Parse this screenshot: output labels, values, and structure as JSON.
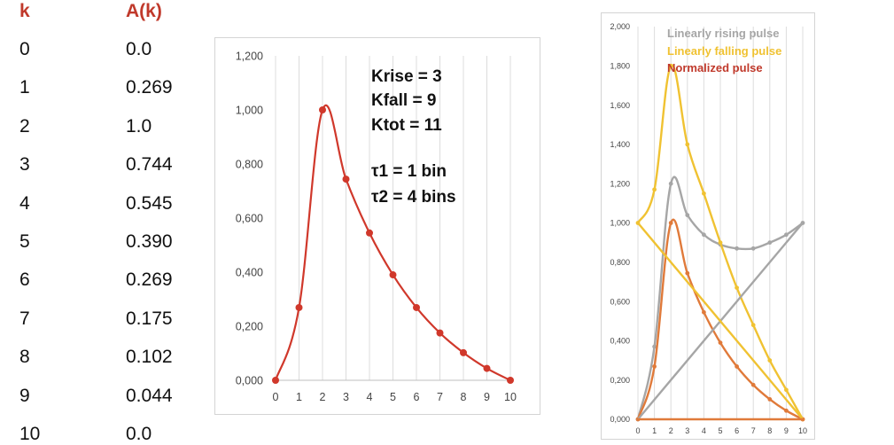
{
  "table": {
    "headers": [
      "k",
      "A(k)"
    ],
    "rows": [
      [
        "0",
        "0.0"
      ],
      [
        "1",
        "0.269"
      ],
      [
        "2",
        "1.0"
      ],
      [
        "3",
        "0.744"
      ],
      [
        "4",
        "0.545"
      ],
      [
        "5",
        "0.390"
      ],
      [
        "6",
        "0.269"
      ],
      [
        "7",
        "0.175"
      ],
      [
        "8",
        "0.102"
      ],
      [
        "9",
        "0.044"
      ],
      [
        "10",
        "0.0"
      ]
    ]
  },
  "colors": {
    "header": "#c0392b",
    "pulse": "#d0382b",
    "rising": "#a6a6a6",
    "falling": "#f0c232",
    "normalized": "#e07a3a",
    "legend_normalized": "#c0392b",
    "grid": "#dcdcdc"
  },
  "annotations": {
    "krise": "Krise = 3",
    "kfall": "Kfall = 9",
    "ktot": "Ktot = 11",
    "tau1": "τ1 = 1 bin",
    "tau2": "τ2 = 4 bins"
  },
  "chart_data": [
    {
      "type": "line",
      "title": "",
      "xlabel": "",
      "ylabel": "",
      "xlim": [
        0,
        10
      ],
      "ylim": [
        0,
        1.2
      ],
      "x_ticks": [
        "0",
        "1",
        "2",
        "3",
        "4",
        "5",
        "6",
        "7",
        "8",
        "9",
        "10"
      ],
      "y_ticks": [
        "0,000",
        "0,200",
        "0,400",
        "0,600",
        "0,800",
        "1,000",
        "1,200"
      ],
      "grid": "vertical",
      "smooth": true,
      "series": [
        {
          "color": "#d0382b",
          "x": [
            0,
            1,
            2,
            3,
            4,
            5,
            6,
            7,
            8,
            9,
            10
          ],
          "y": [
            0.0,
            0.269,
            1.0,
            0.744,
            0.545,
            0.39,
            0.269,
            0.175,
            0.102,
            0.044,
            0.0
          ]
        }
      ]
    },
    {
      "type": "line",
      "title": "",
      "xlim": [
        0,
        10
      ],
      "ylim": [
        0,
        2.0
      ],
      "x_ticks": [
        "0",
        "1",
        "2",
        "3",
        "4",
        "5",
        "6",
        "7",
        "8",
        "9",
        "10"
      ],
      "y_ticks": [
        "0,000",
        "0,200",
        "0,400",
        "0,600",
        "0,800",
        "1,000",
        "1,200",
        "1,400",
        "1,600",
        "1,800",
        "2,000"
      ],
      "grid": "vertical",
      "legend_position": "top",
      "series": [
        {
          "name": "Linearly rising pulse",
          "color": "#a6a6a6",
          "x": [
            0,
            1,
            2,
            3,
            4,
            5,
            6,
            7,
            8,
            9,
            10
          ],
          "y": [
            0.0,
            0.37,
            1.2,
            1.04,
            0.94,
            0.89,
            0.87,
            0.87,
            0.9,
            0.94,
            1.0
          ]
        },
        {
          "name": "Linearly falling pulse",
          "color": "#f0c232",
          "x": [
            0,
            1,
            2,
            3,
            4,
            5,
            6,
            7,
            8,
            9,
            10
          ],
          "y": [
            1.0,
            1.17,
            1.8,
            1.4,
            1.15,
            0.9,
            0.67,
            0.48,
            0.3,
            0.15,
            0.0
          ]
        },
        {
          "name": "Normalized pulse",
          "color": "#e07a3a",
          "x": [
            0,
            1,
            2,
            3,
            4,
            5,
            6,
            7,
            8,
            9,
            10
          ],
          "y": [
            0.0,
            0.269,
            1.0,
            0.744,
            0.545,
            0.39,
            0.269,
            0.175,
            0.102,
            0.044,
            0.0
          ]
        },
        {
          "color": "#a6a6a6",
          "x": [
            0,
            10
          ],
          "y": [
            0.0,
            1.0
          ]
        },
        {
          "color": "#f0c232",
          "x": [
            0,
            10
          ],
          "y": [
            1.0,
            0.0
          ]
        },
        {
          "color": "#e07a3a",
          "x": [
            0,
            10
          ],
          "y": [
            0.0,
            0.0
          ]
        }
      ]
    }
  ]
}
